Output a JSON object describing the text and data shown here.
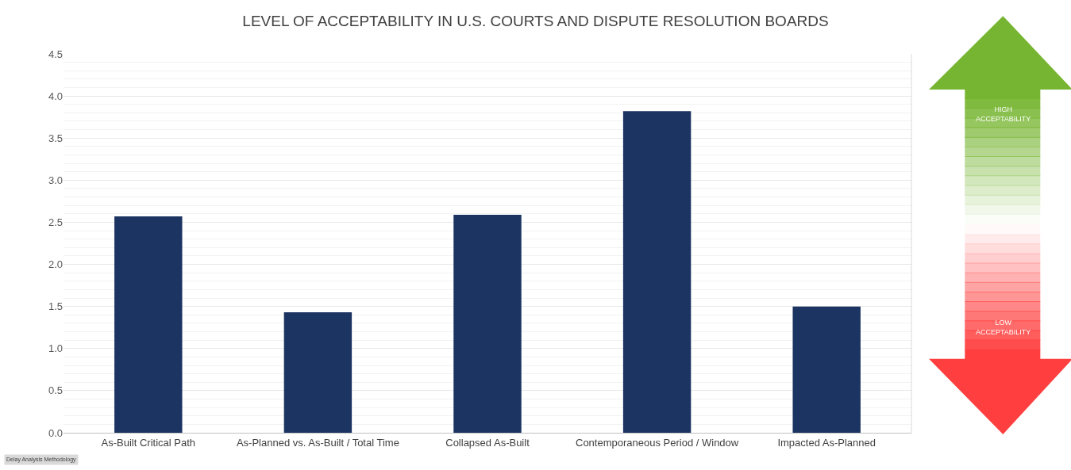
{
  "chart_data": {
    "type": "bar",
    "title": "LEVEL OF ACCEPTABILITY IN U.S. COURTS AND DISPUTE RESOLUTION BOARDS",
    "categories": [
      "As-Built Critical Path",
      "As-Planned vs. As-Built / Total Time",
      "Collapsed As-Built",
      "Contemporaneous Period / Window",
      "Impacted As-Planned"
    ],
    "values": [
      2.57,
      1.43,
      2.59,
      3.82,
      1.5
    ],
    "color": "#1b3461",
    "ylim": [
      0,
      4.5
    ],
    "yticks": [
      {
        "value": 0,
        "label": "0.0"
      },
      {
        "value": 0.5,
        "label": "0.5"
      },
      {
        "value": 1,
        "label": "1.0"
      },
      {
        "value": 1.5,
        "label": "1.5"
      },
      {
        "value": 2,
        "label": "2.0"
      },
      {
        "value": 2.5,
        "label": "2.5"
      },
      {
        "value": 3,
        "label": "3.0"
      },
      {
        "value": 3.5,
        "label": "3.5"
      },
      {
        "value": 4,
        "label": "4.0"
      },
      {
        "value": 4.5,
        "label": "4.5"
      }
    ],
    "grid": "y",
    "annotations": [
      "HIGH ACCEPTABILITY",
      "LOW ACCEPTABILITY",
      "Delay Analysis Methodology"
    ]
  }
}
